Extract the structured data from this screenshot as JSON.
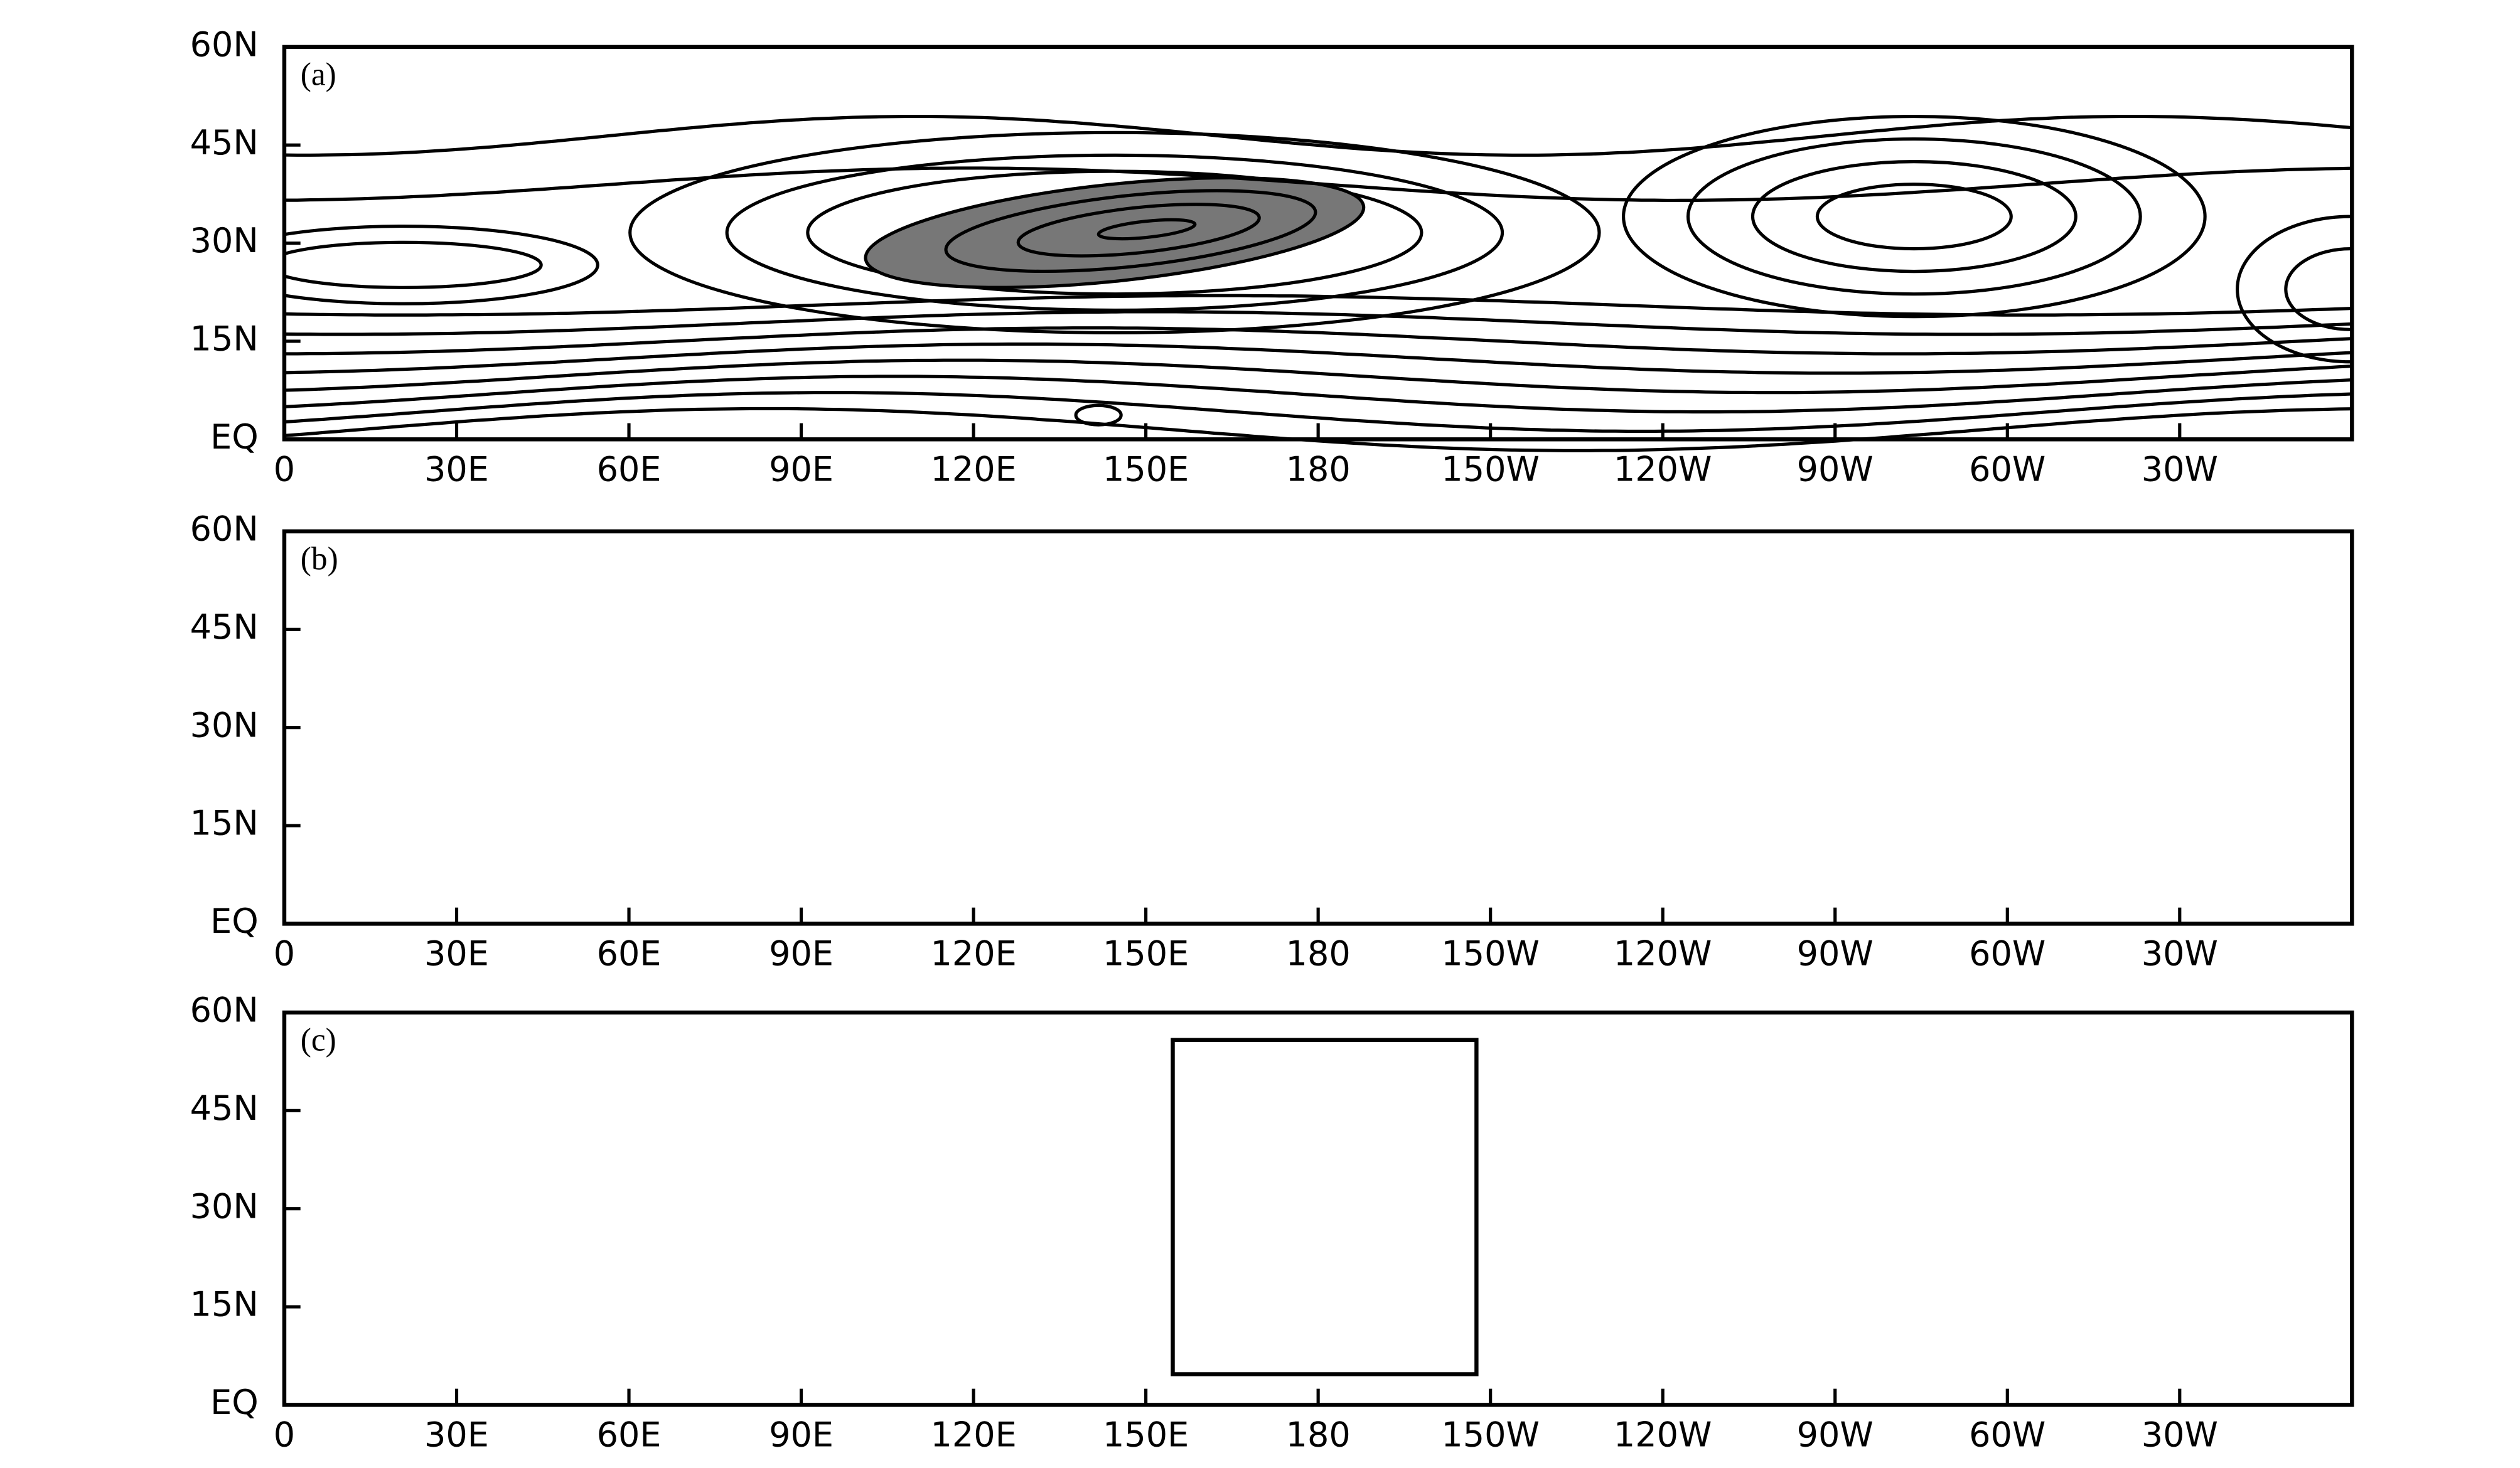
{
  "panels": [
    {
      "label": "(a)"
    },
    {
      "label": "(b)"
    },
    {
      "label": "(c)"
    }
  ],
  "x_axis": {
    "ticks": [
      "0",
      "30E",
      "60E",
      "90E",
      "120E",
      "150E",
      "180",
      "150W",
      "120W",
      "90W",
      "60W",
      "30W"
    ]
  },
  "y_axis": {
    "ticks": [
      "60N",
      "45N",
      "30N",
      "15N",
      "EQ"
    ]
  }
}
